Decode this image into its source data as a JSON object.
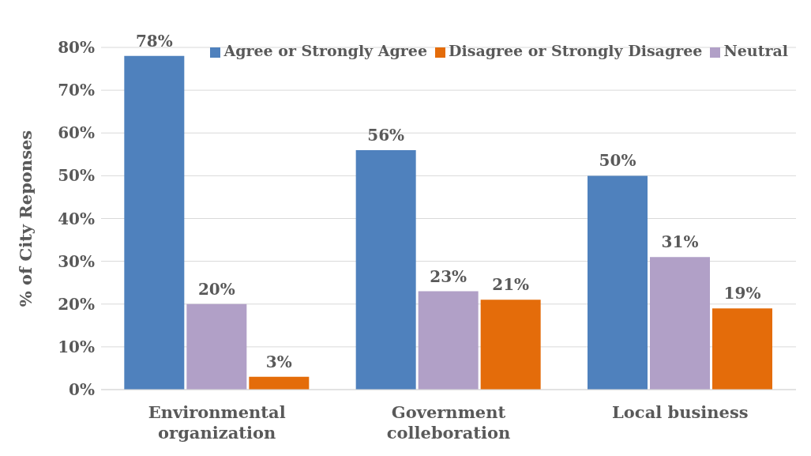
{
  "chart_data": {
    "type": "bar",
    "ylabel": "% of City Reponses",
    "categories": [
      "Environmental organization",
      "Government colleboration",
      "Local business"
    ],
    "series": [
      {
        "name": "Agree or Strongly Agree",
        "color": "#4f81bd",
        "values": [
          78,
          56,
          50
        ],
        "value_labels": [
          "78%",
          "56%",
          "50%"
        ]
      },
      {
        "name": "Neutral",
        "color": "#b1a0c7",
        "values": [
          20,
          23,
          31
        ],
        "value_labels": [
          "20%",
          "23%",
          "31%"
        ]
      },
      {
        "name": "Disagree or Strongly Disagree",
        "color": "#e46c0a",
        "values": [
          3,
          21,
          19
        ],
        "value_labels": [
          "3%",
          "21%",
          "19%"
        ]
      }
    ],
    "ylim": [
      0,
      80
    ],
    "yticks": [
      {
        "value": 0,
        "label": "0%"
      },
      {
        "value": 10,
        "label": "10%"
      },
      {
        "value": 20,
        "label": "20%"
      },
      {
        "value": 30,
        "label": "30%"
      },
      {
        "value": 40,
        "label": "40%"
      },
      {
        "value": 50,
        "label": "50%"
      },
      {
        "value": 60,
        "label": "60%"
      },
      {
        "value": 70,
        "label": "70%"
      },
      {
        "value": 80,
        "label": "80%"
      }
    ],
    "grid": "y",
    "legend": "top right"
  }
}
